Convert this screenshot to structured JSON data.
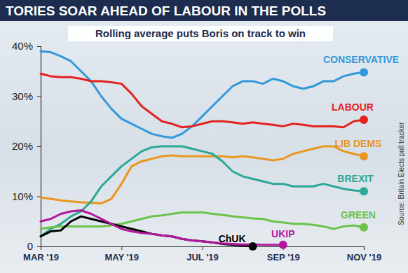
{
  "chart_data": {
    "type": "line",
    "title": "TORIES SOAR AHEAD OF LABOUR IN THE POLLS",
    "subtitle": "Rolling average puts Boris on track to win",
    "source": "Source: Britain Elects poll tracker",
    "x": [
      3,
      3.25,
      3.5,
      3.75,
      4,
      4.25,
      4.5,
      4.75,
      5,
      5.25,
      5.5,
      5.75,
      6,
      6.25,
      6.5,
      6.75,
      7,
      7.25,
      7.5,
      7.75,
      8,
      8.25,
      8.5,
      8.75,
      9,
      9.25,
      9.5,
      9.75,
      10,
      10.25,
      10.5,
      10.75,
      11
    ],
    "xlim": [
      3,
      11
    ],
    "xticks": [
      {
        "value": 3,
        "label": "MAR '19"
      },
      {
        "value": 5,
        "label": "MAY '19"
      },
      {
        "value": 7,
        "label": "JUL '19"
      },
      {
        "value": 9,
        "label": "SEP '19"
      },
      {
        "value": 11,
        "label": "NOV '19"
      }
    ],
    "ylim": [
      0,
      40
    ],
    "yticks": [
      0,
      {
        "value": 10,
        "label": "10%"
      },
      {
        "value": 20,
        "label": "20%"
      },
      {
        "value": 30,
        "label": "30%"
      },
      {
        "value": 40,
        "label": "40%"
      }
    ],
    "grid": false,
    "marker": "last",
    "series": [
      {
        "name": "CONSERVATIVE",
        "color": "#3398db",
        "values": [
          39,
          38.8,
          38,
          37,
          35,
          33,
          30,
          27.5,
          25.5,
          24.5,
          23.5,
          22.5,
          22,
          21.7,
          22.5,
          24,
          26,
          28,
          30,
          32,
          33,
          33,
          32.5,
          33.5,
          33,
          32,
          31.5,
          32,
          33,
          33,
          34,
          34.5,
          34.8
        ]
      },
      {
        "name": "LABOUR",
        "color": "#e3231e",
        "values": [
          34.5,
          34,
          33.8,
          33.8,
          33.5,
          33,
          33,
          32.8,
          32.5,
          30.5,
          28,
          26.5,
          25,
          24.5,
          23.8,
          24,
          24.5,
          25,
          25,
          24.8,
          24.5,
          24.8,
          24.5,
          24.3,
          24,
          24.5,
          24.3,
          24,
          24,
          24,
          23.8,
          25,
          25.3
        ]
      },
      {
        "name": "LIB DEMS",
        "color": "#e8961e",
        "values": [
          9.8,
          9.5,
          9.2,
          9,
          8.8,
          8.7,
          8.6,
          9.5,
          12.5,
          16,
          17,
          17.5,
          18,
          18.2,
          18,
          18,
          18,
          18,
          18,
          17.8,
          18,
          17.8,
          17.5,
          17.2,
          17.5,
          18.5,
          19,
          19.5,
          20,
          20,
          19,
          18.5,
          18
        ]
      },
      {
        "name": "BREXIT",
        "color": "#2aa898",
        "values": [
          2,
          3.5,
          4.5,
          6,
          7,
          9,
          12,
          14,
          16,
          17.5,
          19,
          19.8,
          20,
          20,
          20,
          19.5,
          19,
          18.5,
          17,
          15,
          14,
          13.5,
          13,
          12.5,
          12.5,
          12,
          12,
          12,
          12.5,
          12,
          11.5,
          11.2,
          11
        ]
      },
      {
        "name": "GREEN",
        "color": "#6cc24a",
        "values": [
          3.5,
          3.8,
          4,
          4,
          4,
          4,
          4,
          4.2,
          4.5,
          5,
          5.5,
          6,
          6.2,
          6.5,
          6.8,
          6.8,
          6.8,
          6.5,
          6.3,
          6,
          5.8,
          5.6,
          5.5,
          5,
          4.8,
          4.5,
          4.5,
          4.3,
          4,
          3.5,
          4,
          4.2,
          3.8
        ]
      },
      {
        "name": "ChUK",
        "color": "#000000",
        "values": [
          2,
          3,
          3.2,
          5,
          6,
          5.5,
          5,
          4.5,
          4,
          3.5,
          3,
          2.5,
          2.2,
          2,
          1.5,
          1.2,
          1,
          0.8,
          0.5,
          0.3,
          0.2,
          0,
          null,
          null,
          null,
          null,
          null,
          null,
          null,
          null,
          null,
          null,
          null
        ]
      },
      {
        "name": "UKIP",
        "color": "#b3179e",
        "values": [
          5,
          5.5,
          6.5,
          7,
          7.2,
          6.5,
          5.5,
          4.5,
          3.5,
          3,
          2.7,
          2.5,
          2.2,
          2,
          1.5,
          1.2,
          1,
          0.8,
          0.6,
          0.5,
          0.4,
          0.4,
          0.3,
          0.3,
          0.3,
          null,
          null,
          null,
          null,
          null,
          null,
          null,
          null
        ]
      }
    ]
  }
}
